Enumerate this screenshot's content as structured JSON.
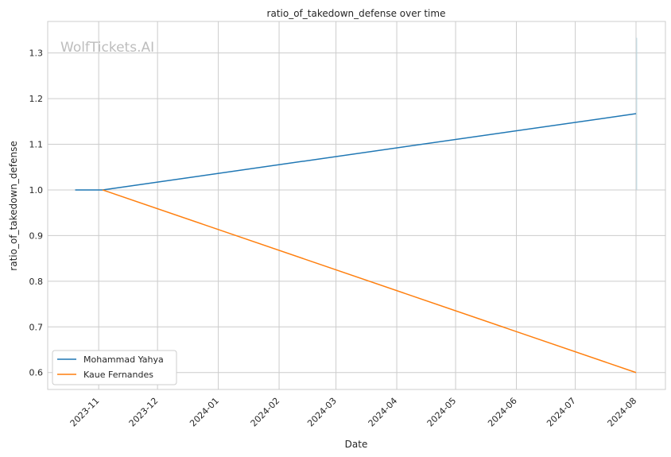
{
  "chart_data": {
    "type": "line",
    "title": "ratio_of_takedown_defense over time",
    "xlabel": "Date",
    "ylabel": "ratio_of_takedown_defense",
    "watermark": "WolfTickets.AI",
    "xlim": [
      "2023-10-06",
      "2024-08-16"
    ],
    "ylim": [
      0.563,
      1.369
    ],
    "x_ticks": [
      "2023-11",
      "2023-12",
      "2024-01",
      "2024-02",
      "2024-03",
      "2024-04",
      "2024-05",
      "2024-06",
      "2024-07",
      "2024-08"
    ],
    "y_ticks": [
      0.6,
      0.7,
      0.8,
      0.9,
      1.0,
      1.1,
      1.2,
      1.3
    ],
    "grid": true,
    "legend_position": "lower-left",
    "series": [
      {
        "name": "Mohammad Yahya",
        "color": "#1f77b4",
        "points": [
          {
            "x": "2023-10-20",
            "y": 1.0
          },
          {
            "x": "2023-11-03",
            "y": 1.0
          },
          {
            "x": "2024-08-01",
            "y": 1.167
          }
        ]
      },
      {
        "name": "Kaue Fernandes",
        "color": "#ff7f0e",
        "points": [
          {
            "x": "2023-11-03",
            "y": 1.0
          },
          {
            "x": "2024-08-01",
            "y": 0.6
          }
        ]
      }
    ],
    "vertical_band": {
      "x": "2024-08-01",
      "y": [
        1.0,
        1.333
      ],
      "color": "#add8e6"
    }
  }
}
